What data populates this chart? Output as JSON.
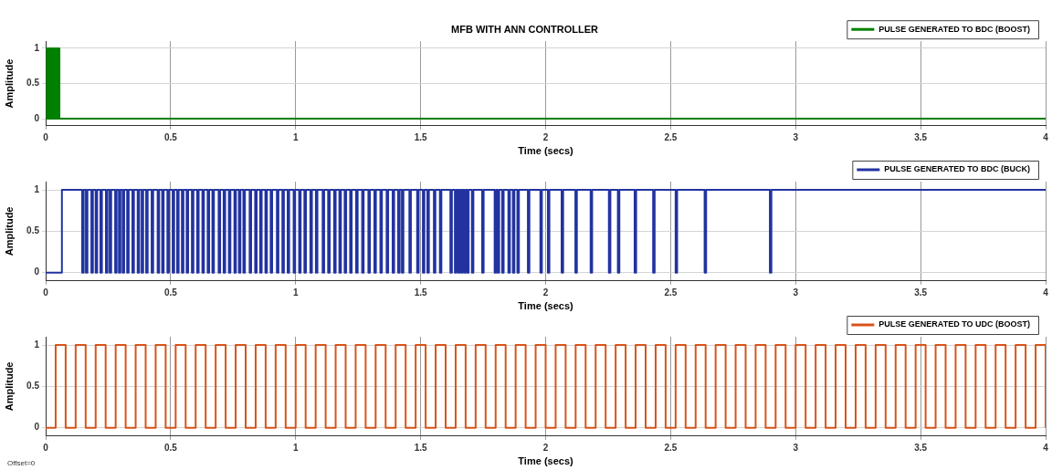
{
  "chart_data": [
    {
      "type": "step",
      "title": "MFB WITH ANN CONTROLLER",
      "xlabel": "Time (secs)",
      "ylabel": "Amplitude",
      "xlim": [
        0,
        4
      ],
      "xticks": [
        0,
        0.5,
        1,
        1.5,
        2,
        2.5,
        3,
        3.5,
        4
      ],
      "ylim": [
        -0.1,
        1.1
      ],
      "yticks": [
        0,
        0.5,
        1
      ],
      "grid": true,
      "legend": "top right",
      "series": [
        {
          "name": "PULSE GENERATED TO BDC (BOOST)",
          "color": "#008000",
          "x": [
            0,
            0.005,
            0.01,
            0.015,
            0.02,
            0.025,
            0.03,
            0.035,
            0.04,
            0.045,
            0.05,
            0.055,
            4
          ],
          "values": [
            1,
            0,
            1,
            0,
            1,
            0,
            1,
            0,
            1,
            0,
            1,
            0,
            0
          ]
        }
      ]
    },
    {
      "type": "step",
      "xlabel": "Time (secs)",
      "ylabel": "Amplitude",
      "xlim": [
        0,
        4
      ],
      "xticks": [
        0,
        0.5,
        1,
        1.5,
        2,
        2.5,
        3,
        3.5,
        4
      ],
      "ylim": [
        -0.1,
        1.1
      ],
      "yticks": [
        0,
        0.5,
        1
      ],
      "grid": true,
      "legend": "top right",
      "series": [
        {
          "name": "PULSE GENERATED TO BDC (BUCK)",
          "color": "#2233a0",
          "x": [
            0,
            0.065,
            0.146,
            0.152,
            0.161,
            0.167,
            0.183,
            0.189,
            0.2,
            0.206,
            0.219,
            0.225,
            0.241,
            0.247,
            0.256,
            0.262,
            0.278,
            0.284,
            0.293,
            0.299,
            0.308,
            0.314,
            0.326,
            0.332,
            0.347,
            0.353,
            0.368,
            0.374,
            0.384,
            0.39,
            0.402,
            0.408,
            0.424,
            0.43,
            0.448,
            0.454,
            0.466,
            0.472,
            0.487,
            0.493,
            0.508,
            0.514,
            0.526,
            0.532,
            0.545,
            0.551,
            0.564,
            0.57,
            0.585,
            0.591,
            0.606,
            0.612,
            0.627,
            0.633,
            0.648,
            0.654,
            0.667,
            0.673,
            0.692,
            0.698,
            0.712,
            0.718,
            0.733,
            0.739,
            0.755,
            0.761,
            0.773,
            0.779,
            0.791,
            0.797,
            0.816,
            0.822,
            0.838,
            0.844,
            0.858,
            0.864,
            0.879,
            0.885,
            0.9,
            0.906,
            0.925,
            0.931,
            0.947,
            0.953,
            0.968,
            0.974,
            0.992,
            0.998,
            1.014,
            1.02,
            1.035,
            1.041,
            1.059,
            1.065,
            1.081,
            1.087,
            1.108,
            1.114,
            1.13,
            1.136,
            1.154,
            1.16,
            1.175,
            1.181,
            1.196,
            1.202,
            1.218,
            1.224,
            1.242,
            1.248,
            1.266,
            1.272,
            1.291,
            1.297,
            1.315,
            1.321,
            1.339,
            1.345,
            1.364,
            1.37,
            1.388,
            1.394,
            1.41,
            1.416,
            1.425,
            1.431,
            1.455,
            1.461,
            1.486,
            1.492,
            1.509,
            1.515,
            1.527,
            1.533,
            1.553,
            1.559,
            1.577,
            1.583,
            1.619,
            1.625,
            1.637,
            1.643,
            1.65,
            1.656,
            1.662,
            1.668,
            1.674,
            1.68,
            1.686,
            1.692,
            1.705,
            1.711,
            1.746,
            1.752,
            1.796,
            1.802,
            1.808,
            1.814,
            1.826,
            1.832,
            1.851,
            1.857,
            1.869,
            1.875,
            1.887,
            1.893,
            1.929,
            1.935,
            1.979,
            1.985,
            2.009,
            2.015,
            2.064,
            2.07,
            2.119,
            2.125,
            2.18,
            2.186,
            2.253,
            2.259,
            2.289,
            2.295,
            2.356,
            2.362,
            2.43,
            2.436,
            2.52,
            2.526,
            2.636,
            2.642,
            2.897,
            2.903,
            4
          ],
          "values": [
            0,
            1,
            0,
            1,
            0,
            1,
            0,
            1,
            0,
            1,
            0,
            1,
            0,
            1,
            0,
            1,
            0,
            1,
            0,
            1,
            0,
            1,
            0,
            1,
            0,
            1,
            0,
            1,
            0,
            1,
            0,
            1,
            0,
            1,
            0,
            1,
            0,
            1,
            0,
            1,
            0,
            1,
            0,
            1,
            0,
            1,
            0,
            1,
            0,
            1,
            0,
            1,
            0,
            1,
            0,
            1,
            0,
            1,
            0,
            1,
            0,
            1,
            0,
            1,
            0,
            1,
            0,
            1,
            0,
            1,
            0,
            1,
            0,
            1,
            0,
            1,
            0,
            1,
            0,
            1,
            0,
            1,
            0,
            1,
            0,
            1,
            0,
            1,
            0,
            1,
            0,
            1,
            0,
            1,
            0,
            1,
            0,
            1,
            0,
            1,
            0,
            1,
            0,
            1,
            0,
            1,
            0,
            1,
            0,
            1,
            0,
            1,
            0,
            1,
            0,
            1,
            0,
            1,
            0,
            1,
            0,
            1,
            0,
            1,
            0,
            1,
            0,
            1,
            0,
            1,
            0,
            1,
            0,
            1,
            0,
            1,
            0,
            1,
            0,
            1,
            0,
            1,
            0,
            1,
            0,
            1,
            0,
            1,
            0,
            1,
            0,
            1,
            0,
            1,
            0,
            1,
            0,
            1,
            0,
            1,
            0,
            1,
            0,
            1,
            0,
            1,
            0,
            1,
            0,
            1,
            0,
            1,
            0,
            1,
            0,
            1,
            0,
            1,
            0,
            1,
            0,
            1,
            0,
            1,
            0,
            1,
            0,
            1,
            0,
            1,
            0,
            1,
            1
          ]
        }
      ]
    },
    {
      "type": "step",
      "xlabel": "Time (secs)",
      "ylabel": "Amplitude",
      "xlim": [
        0,
        4
      ],
      "xticks": [
        0,
        0.5,
        1,
        1.5,
        2,
        2.5,
        3,
        3.5,
        4
      ],
      "ylim": [
        -0.1,
        1.1
      ],
      "yticks": [
        0,
        0.5,
        1
      ],
      "grid": true,
      "legend": "top right",
      "annotations": [
        "Offset=0"
      ],
      "series": [
        {
          "name": "PULSE GENERATED TO UDC (BOOST)",
          "color": "#d95319",
          "x": [
            0,
            0.04,
            0.08,
            0.12,
            0.16,
            0.2,
            0.24,
            0.28,
            0.32,
            0.36,
            0.4,
            0.44,
            0.48,
            0.52,
            0.56,
            0.6,
            0.64,
            0.68,
            0.72,
            0.76,
            0.8,
            0.84,
            0.88,
            0.92,
            0.96,
            1,
            1.04,
            1.08,
            1.12,
            1.16,
            1.2,
            1.24,
            1.28,
            1.32,
            1.36,
            1.4,
            1.44,
            1.48,
            1.52,
            1.56,
            1.6,
            1.64,
            1.68,
            1.72,
            1.76,
            1.8,
            1.84,
            1.88,
            1.92,
            1.96,
            2,
            2.04,
            2.08,
            2.12,
            2.16,
            2.2,
            2.24,
            2.28,
            2.32,
            2.36,
            2.4,
            2.44,
            2.48,
            2.52,
            2.56,
            2.6,
            2.64,
            2.68,
            2.72,
            2.76,
            2.8,
            2.84,
            2.88,
            2.92,
            2.96,
            3,
            3.04,
            3.08,
            3.12,
            3.16,
            3.2,
            3.24,
            3.28,
            3.32,
            3.36,
            3.4,
            3.44,
            3.48,
            3.52,
            3.56,
            3.6,
            3.64,
            3.68,
            3.72,
            3.76,
            3.8,
            3.84,
            3.88,
            3.92,
            3.96,
            4
          ],
          "values": [
            0,
            1,
            0,
            1,
            0,
            1,
            0,
            1,
            0,
            1,
            0,
            1,
            0,
            1,
            0,
            1,
            0,
            1,
            0,
            1,
            0,
            1,
            0,
            1,
            0,
            1,
            0,
            1,
            0,
            1,
            0,
            1,
            0,
            1,
            0,
            1,
            0,
            1,
            0,
            1,
            0,
            1,
            0,
            1,
            0,
            1,
            0,
            1,
            0,
            1,
            0,
            1,
            0,
            1,
            0,
            1,
            0,
            1,
            0,
            1,
            0,
            1,
            0,
            1,
            0,
            1,
            0,
            1,
            0,
            1,
            0,
            1,
            0,
            1,
            0,
            1,
            0,
            1,
            0,
            1,
            0,
            1,
            0,
            1,
            0,
            1,
            0,
            1,
            0,
            1,
            0,
            1,
            0,
            1,
            0,
            1,
            0,
            1,
            0,
            1,
            0
          ]
        }
      ]
    }
  ]
}
